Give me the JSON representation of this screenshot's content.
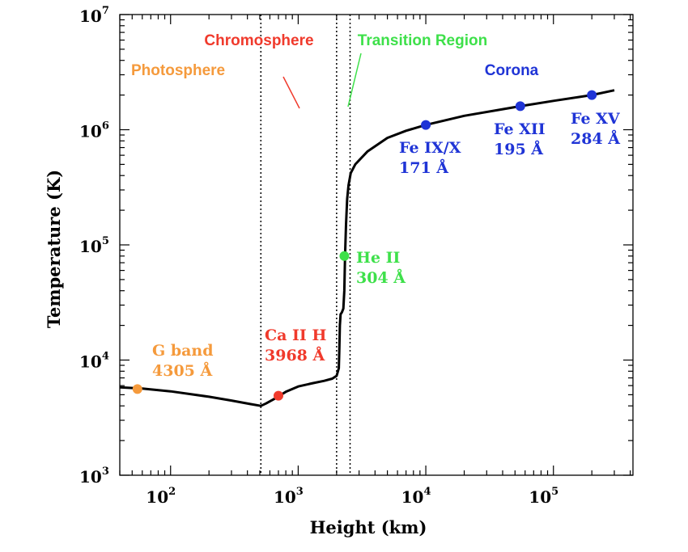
{
  "chart_data": {
    "type": "line",
    "x_scale": "log",
    "y_scale": "log",
    "xlabel": "Height (km)",
    "ylabel": "Temperature (K)",
    "xlim": [
      40,
      420000
    ],
    "ylim": [
      1000,
      10000000
    ],
    "x_ticks": [
      {
        "value": 100,
        "base": "10",
        "exp": "2"
      },
      {
        "value": 1000,
        "base": "10",
        "exp": "3"
      },
      {
        "value": 10000,
        "base": "10",
        "exp": "4"
      },
      {
        "value": 100000,
        "base": "10",
        "exp": "5"
      }
    ],
    "y_ticks": [
      {
        "value": 1000,
        "base": "10",
        "exp": "3"
      },
      {
        "value": 10000,
        "base": "10",
        "exp": "4"
      },
      {
        "value": 100000,
        "base": "10",
        "exp": "5"
      },
      {
        "value": 1000000,
        "base": "10",
        "exp": "6"
      },
      {
        "value": 10000000,
        "base": "10",
        "exp": "7"
      }
    ],
    "series": [
      {
        "color": "#000000",
        "points": [
          [
            40,
            5800
          ],
          [
            60,
            5650
          ],
          [
            100,
            5350
          ],
          [
            200,
            4800
          ],
          [
            300,
            4450
          ],
          [
            420,
            4150
          ],
          [
            510,
            4000
          ],
          [
            560,
            4200
          ],
          [
            650,
            4600
          ],
          [
            800,
            5300
          ],
          [
            1000,
            5900
          ],
          [
            1300,
            6300
          ],
          [
            1600,
            6600
          ],
          [
            1850,
            6900
          ],
          [
            2000,
            7300
          ],
          [
            2080,
            8500
          ],
          [
            2100,
            12000
          ],
          [
            2120,
            20000
          ],
          [
            2150,
            25000
          ],
          [
            2200,
            26000
          ],
          [
            2260,
            28000
          ],
          [
            2300,
            40000
          ],
          [
            2330,
            80000
          ],
          [
            2370,
            150000
          ],
          [
            2420,
            250000
          ],
          [
            2480,
            330000
          ],
          [
            2580,
            420000
          ],
          [
            2800,
            500000
          ],
          [
            3500,
            650000
          ],
          [
            5000,
            850000
          ],
          [
            7000,
            980000
          ],
          [
            10000,
            1100000
          ],
          [
            20000,
            1320000
          ],
          [
            55000,
            1600000
          ],
          [
            100000,
            1780000
          ],
          [
            200000,
            2000000
          ],
          [
            300000,
            2200000
          ]
        ]
      }
    ],
    "vertical_lines": [
      510,
      2000,
      2550
    ],
    "lines_dash": "dotted",
    "regions": [
      {
        "label": "Photosphere",
        "color": "#f59a3c"
      },
      {
        "label": "Chromosphere",
        "color": "#f03a2c"
      },
      {
        "label": "Transition Region",
        "color": "#3ee04a"
      },
      {
        "label": "Corona",
        "color": "#1f34d6"
      }
    ],
    "markers": [
      {
        "x": 55,
        "y": 5600,
        "color": "#f59a3c",
        "label_lines": [
          "G band",
          "4305 Å"
        ]
      },
      {
        "x": 700,
        "y": 4900,
        "color": "#f03a2c",
        "label_lines": [
          "Ca II H",
          "3968 Å"
        ]
      },
      {
        "x": 2300,
        "y": 80000,
        "color": "#3ee04a",
        "label_lines": [
          "He II",
          "304 Å"
        ]
      },
      {
        "x": 10000,
        "y": 1100000,
        "color": "#1f34d6",
        "label_lines": [
          "Fe IX/X",
          "171 Å"
        ]
      },
      {
        "x": 55000,
        "y": 1600000,
        "color": "#1f34d6",
        "label_lines": [
          "Fe XII",
          "195 Å"
        ]
      },
      {
        "x": 200000,
        "y": 2000000,
        "color": "#1f34d6",
        "label_lines": [
          "Fe XV",
          "284 Å"
        ]
      }
    ]
  }
}
